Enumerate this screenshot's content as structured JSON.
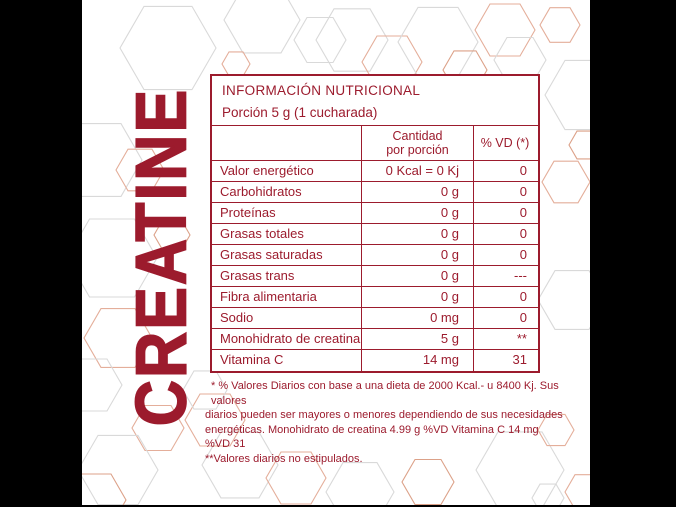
{
  "brand": {
    "name": "CREATINE",
    "accent_red": "#9C1B2D",
    "hexagon_gray": "#D9D9D9",
    "hexagon_salmon": "#E4AE9A"
  },
  "panel": {
    "title": "INFORMACIÓN NUTRICIONAL",
    "serving": "Porción 5 g (1 cucharada)",
    "columns": {
      "amount_line1": "Cantidad",
      "amount_line2": "por porción",
      "vd": "% VD (*)"
    },
    "rows": [
      {
        "label": "Valor energético",
        "amount": "0 Kcal = 0 Kj",
        "vd": "0"
      },
      {
        "label": "Carbohidratos",
        "amount": "0 g",
        "vd": "0"
      },
      {
        "label": "Proteínas",
        "amount": "0 g",
        "vd": "0"
      },
      {
        "label": "Grasas totales",
        "amount": "0 g",
        "vd": "0"
      },
      {
        "label": "Grasas saturadas",
        "amount": "0 g",
        "vd": "0"
      },
      {
        "label": "Grasas trans",
        "amount": "0 g",
        "vd": "---"
      },
      {
        "label": "Fibra alimentaria",
        "amount": "0 g",
        "vd": "0"
      },
      {
        "label": "Sodio",
        "amount": "0 mg",
        "vd": "0"
      },
      {
        "label": "Monohidrato de creatina",
        "amount": "5 g",
        "vd": "**"
      },
      {
        "label": "Vitamina C",
        "amount": "14 mg",
        "vd": "31"
      }
    ],
    "footnote_lines": [
      "* % Valores Diarios con base a una dieta de 2000 Kcal.- u 8400 Kj. Sus valores",
      "diarios pueden ser mayores o menores dependiendo de sus necesidades",
      "energéticas. Monohidrato de creatina 4.99 g %VD Vitamina C 14 mg %VD 31",
      "**Valores diarios no estipulados."
    ]
  }
}
